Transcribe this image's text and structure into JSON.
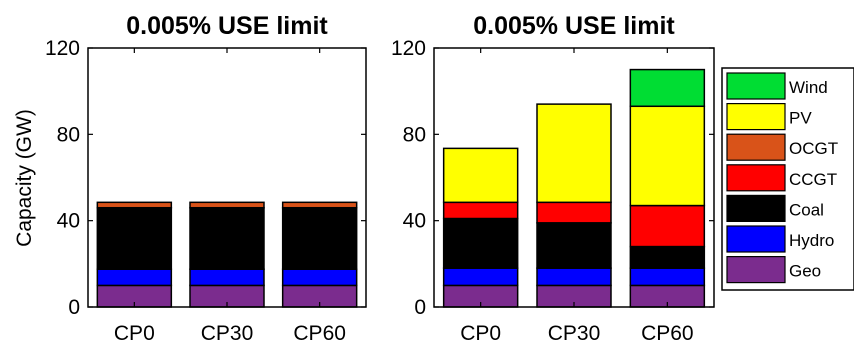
{
  "chart_data": [
    {
      "type": "bar",
      "stacked": true,
      "title": "0.005% USE limit",
      "ylabel": "Capacity (GW)",
      "xlabel": "",
      "categories": [
        "CP0",
        "CP30",
        "CP60"
      ],
      "ylim": [
        0,
        120
      ],
      "yticks": [
        0,
        40,
        80,
        120
      ],
      "series": [
        {
          "name": "Geo",
          "color": "#7B2C8E",
          "values": [
            10,
            10,
            10
          ]
        },
        {
          "name": "Hydro",
          "color": "#0000FF",
          "values": [
            7.5,
            7.5,
            7.5
          ]
        },
        {
          "name": "Coal",
          "color": "#000000",
          "values": [
            28.5,
            28.5,
            28.5
          ]
        },
        {
          "name": "CCGT",
          "color": "#FF0000",
          "values": [
            0,
            0,
            0
          ]
        },
        {
          "name": "OCGT",
          "color": "#D95319",
          "values": [
            2.5,
            2.5,
            2.5
          ]
        },
        {
          "name": "PV",
          "color": "#FFFF00",
          "values": [
            0,
            0,
            0
          ]
        },
        {
          "name": "Wind",
          "color": "#00DD33",
          "values": [
            0,
            0,
            0
          ]
        }
      ]
    },
    {
      "type": "bar",
      "stacked": true,
      "title": "0.005% USE limit",
      "ylabel": "",
      "xlabel": "",
      "categories": [
        "CP0",
        "CP30",
        "CP60"
      ],
      "ylim": [
        0,
        120
      ],
      "yticks": [
        0,
        40,
        80,
        120
      ],
      "legend": "right",
      "series": [
        {
          "name": "Geo",
          "color": "#7B2C8E",
          "values": [
            10,
            10,
            10
          ]
        },
        {
          "name": "Hydro",
          "color": "#0000FF",
          "values": [
            8,
            8,
            8
          ]
        },
        {
          "name": "Coal",
          "color": "#000000",
          "values": [
            23,
            21,
            10
          ]
        },
        {
          "name": "CCGT",
          "color": "#FF0000",
          "values": [
            7.5,
            9.5,
            19
          ]
        },
        {
          "name": "OCGT",
          "color": "#D95319",
          "values": [
            0,
            0,
            0
          ]
        },
        {
          "name": "PV",
          "color": "#FFFF00",
          "values": [
            25,
            45.5,
            46
          ]
        },
        {
          "name": "Wind",
          "color": "#00DD33",
          "values": [
            0,
            0,
            17
          ]
        }
      ]
    }
  ]
}
